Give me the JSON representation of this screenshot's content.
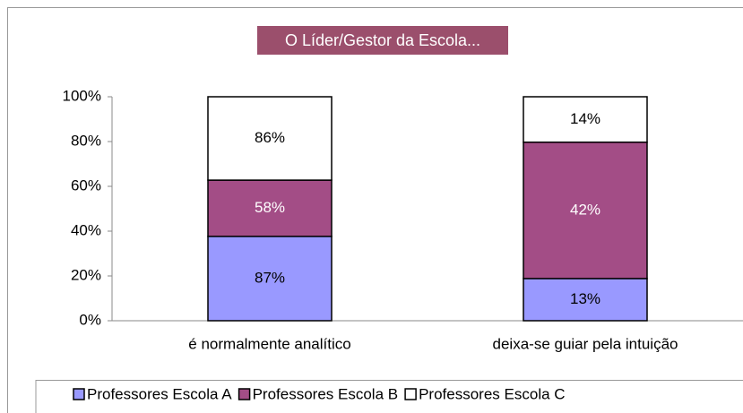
{
  "chart_data": {
    "type": "bar",
    "stack": "percent",
    "title": "O Líder/Gestor da Escola...",
    "categories": [
      "é normalmente analítico",
      "deixa-se guiar pela intuição"
    ],
    "series": [
      {
        "name": "Professores Escola A",
        "color": "#9999ff",
        "values": [
          87,
          13
        ],
        "value_labels": [
          "87%",
          "13%"
        ]
      },
      {
        "name": "Professores Escola B",
        "color": "#a34d86",
        "values": [
          58,
          42
        ],
        "value_labels": [
          "58%",
          "42%"
        ]
      },
      {
        "name": "Professores Escola C",
        "color": "#ffffff",
        "values": [
          86,
          14
        ],
        "value_labels": [
          "86%",
          "14%"
        ]
      }
    ],
    "ylim": [
      0,
      100
    ],
    "yticks": [
      {
        "value": 0,
        "label": "0%"
      },
      {
        "value": 20,
        "label": "20%"
      },
      {
        "value": 40,
        "label": "40%"
      },
      {
        "value": 60,
        "label": "60%"
      },
      {
        "value": 80,
        "label": "80%"
      },
      {
        "value": 100,
        "label": "100%"
      }
    ],
    "legend": "bottom"
  }
}
